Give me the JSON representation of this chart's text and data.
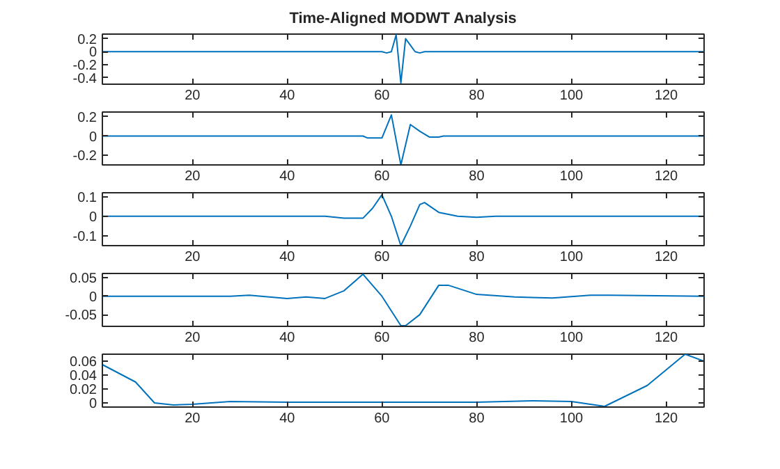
{
  "chart_data": [
    {
      "type": "line",
      "title": "Time-Aligned MODWT Analysis",
      "color": "#0072bd",
      "x": [
        1,
        60,
        61,
        62,
        63,
        64,
        65,
        66,
        67,
        68,
        69,
        128
      ],
      "values": [
        0,
        0,
        -0.02,
        0.0,
        0.26,
        -0.48,
        0.2,
        0.1,
        0.0,
        -0.02,
        0,
        0
      ],
      "xlim": [
        1,
        128
      ],
      "xticks": [
        20,
        40,
        60,
        80,
        100,
        120
      ],
      "ylim": [
        -0.5,
        0.27
      ],
      "yticks": [
        -0.4,
        -0.2,
        0,
        0.2
      ]
    },
    {
      "type": "line",
      "color": "#0072bd",
      "x": [
        1,
        56,
        57,
        60,
        62,
        64,
        66,
        68,
        70,
        72,
        73,
        128
      ],
      "values": [
        0,
        0,
        -0.02,
        -0.02,
        0.22,
        -0.3,
        0.12,
        0.05,
        -0.01,
        -0.01,
        0,
        0
      ],
      "xlim": [
        1,
        128
      ],
      "xticks": [
        20,
        40,
        60,
        80,
        100,
        120
      ],
      "ylim": [
        -0.3,
        0.25
      ],
      "yticks": [
        -0.2,
        0,
        0.2
      ]
    },
    {
      "type": "line",
      "color": "#0072bd",
      "x": [
        1,
        48,
        52,
        56,
        58,
        60,
        62,
        64,
        66,
        68,
        69,
        72,
        76,
        80,
        84,
        128
      ],
      "values": [
        0,
        0,
        -0.01,
        -0.01,
        0.04,
        0.11,
        0.0,
        -0.15,
        -0.05,
        0.06,
        0.07,
        0.02,
        0.0,
        -0.005,
        0,
        0
      ],
      "xlim": [
        1,
        128
      ],
      "xticks": [
        20,
        40,
        60,
        80,
        100,
        120
      ],
      "ylim": [
        -0.15,
        0.12
      ],
      "yticks": [
        -0.1,
        0,
        0.1
      ]
    },
    {
      "type": "line",
      "color": "#0072bd",
      "x": [
        1,
        28,
        32,
        40,
        44,
        48,
        52,
        56,
        60,
        64,
        65,
        68,
        72,
        74,
        80,
        88,
        96,
        104,
        108,
        128
      ],
      "values": [
        0,
        0,
        0.003,
        -0.006,
        -0.002,
        -0.006,
        0.015,
        0.06,
        0.0,
        -0.08,
        -0.08,
        -0.05,
        0.03,
        0.03,
        0.005,
        -0.002,
        -0.005,
        0.003,
        0.003,
        0
      ],
      "xlim": [
        1,
        128
      ],
      "xticks": [
        20,
        40,
        60,
        80,
        100,
        120
      ],
      "ylim": [
        -0.082,
        0.062
      ],
      "yticks": [
        -0.05,
        0,
        0.05
      ]
    },
    {
      "type": "line",
      "color": "#0072bd",
      "x": [
        1,
        8,
        12,
        16,
        20,
        28,
        40,
        80,
        92,
        100,
        107,
        116,
        124,
        128
      ],
      "values": [
        0.055,
        0.03,
        0.0,
        -0.003,
        -0.002,
        0.002,
        0.001,
        0.001,
        0.003,
        0.002,
        -0.005,
        0.025,
        0.07,
        0.06
      ],
      "xlim": [
        1,
        128
      ],
      "xticks": [
        20,
        40,
        60,
        80,
        100,
        120
      ],
      "ylim": [
        -0.006,
        0.07
      ],
      "yticks": [
        0,
        0.02,
        0.04,
        0.06
      ]
    }
  ]
}
